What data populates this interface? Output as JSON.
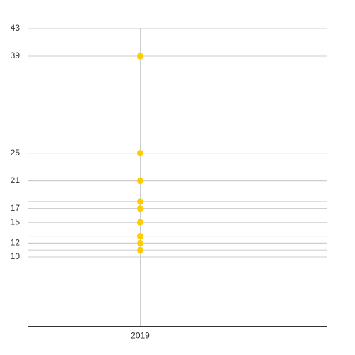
{
  "chart_data": {
    "type": "strip",
    "categories": [
      "2019"
    ],
    "values": [
      [
        39,
        25,
        21,
        18,
        17,
        15,
        13,
        12,
        11
      ]
    ],
    "color": "#ffcc00",
    "ylim": [
      0,
      43
    ],
    "yticks": [
      10,
      12,
      15,
      17,
      21,
      25,
      39,
      43
    ],
    "grid": true
  }
}
